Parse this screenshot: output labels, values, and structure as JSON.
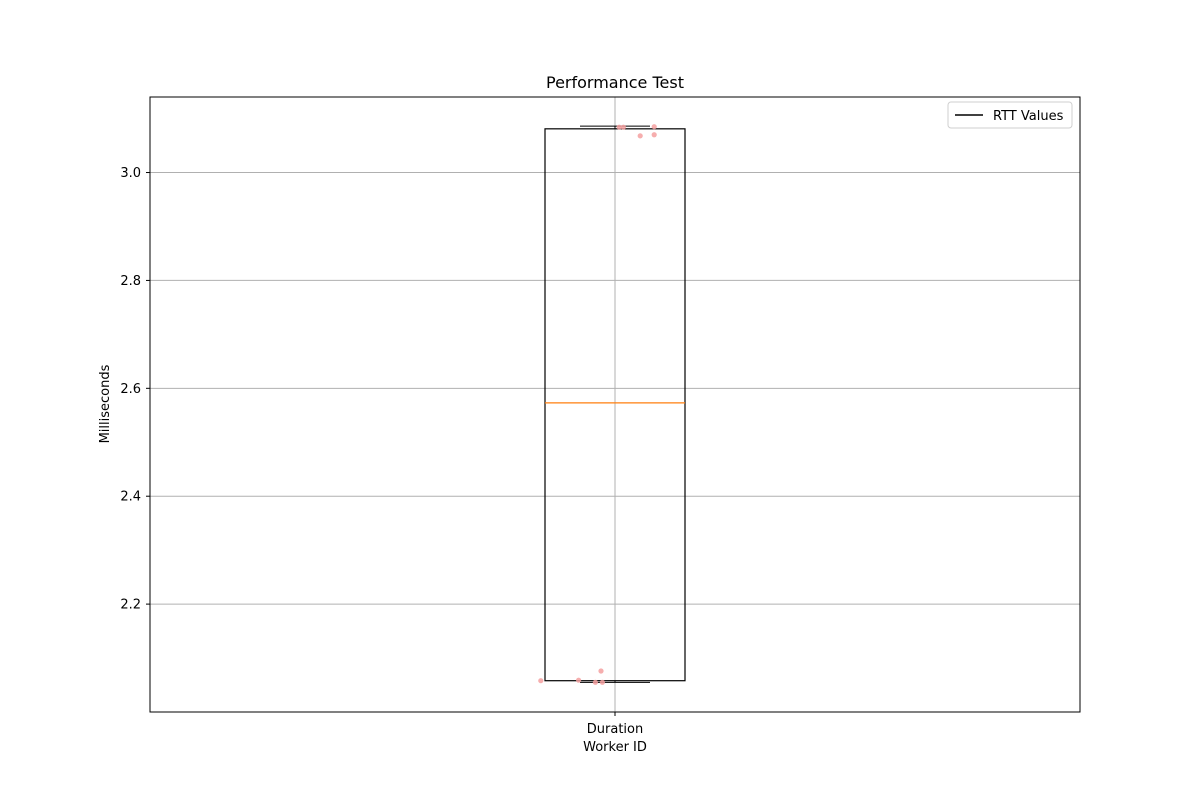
{
  "chart_data": {
    "type": "box",
    "title": "Performance Test",
    "xlabel": "Worker ID",
    "ylabel": "Milliseconds",
    "categories": [
      "Duration"
    ],
    "ylim": [
      2.0,
      3.14
    ],
    "yticks": [
      2.2,
      2.4,
      2.6,
      2.8,
      3.0
    ],
    "ytick_labels": [
      "2.2",
      "2.4",
      "2.6",
      "2.8",
      "3.0"
    ],
    "grid": true,
    "legend": {
      "position": "top-right",
      "entries": [
        "RTT Values"
      ]
    },
    "boxes": [
      {
        "category": "Duration",
        "whisker_low": 2.055,
        "q1": 2.058,
        "median": 2.573,
        "q3": 3.081,
        "whisker_high": 3.086
      }
    ],
    "points": [
      {
        "category": "Duration",
        "offset": -0.53,
        "value": 2.058
      },
      {
        "category": "Duration",
        "offset": -0.26,
        "value": 2.059
      },
      {
        "category": "Duration",
        "offset": -0.14,
        "value": 2.055
      },
      {
        "category": "Duration",
        "offset": -0.09,
        "value": 2.055
      },
      {
        "category": "Duration",
        "offset": -0.1,
        "value": 2.076
      },
      {
        "category": "Duration",
        "offset": 0.03,
        "value": 3.084
      },
      {
        "category": "Duration",
        "offset": 0.06,
        "value": 3.084
      },
      {
        "category": "Duration",
        "offset": 0.18,
        "value": 3.068
      },
      {
        "category": "Duration",
        "offset": 0.28,
        "value": 3.07
      },
      {
        "category": "Duration",
        "offset": 0.28,
        "value": 3.085
      }
    ],
    "colors": {
      "box": "#000000",
      "median": "#ff7f0e",
      "grid": "#b0b0b0",
      "points": "#f4a0a0",
      "legend_line": "#000000"
    }
  }
}
